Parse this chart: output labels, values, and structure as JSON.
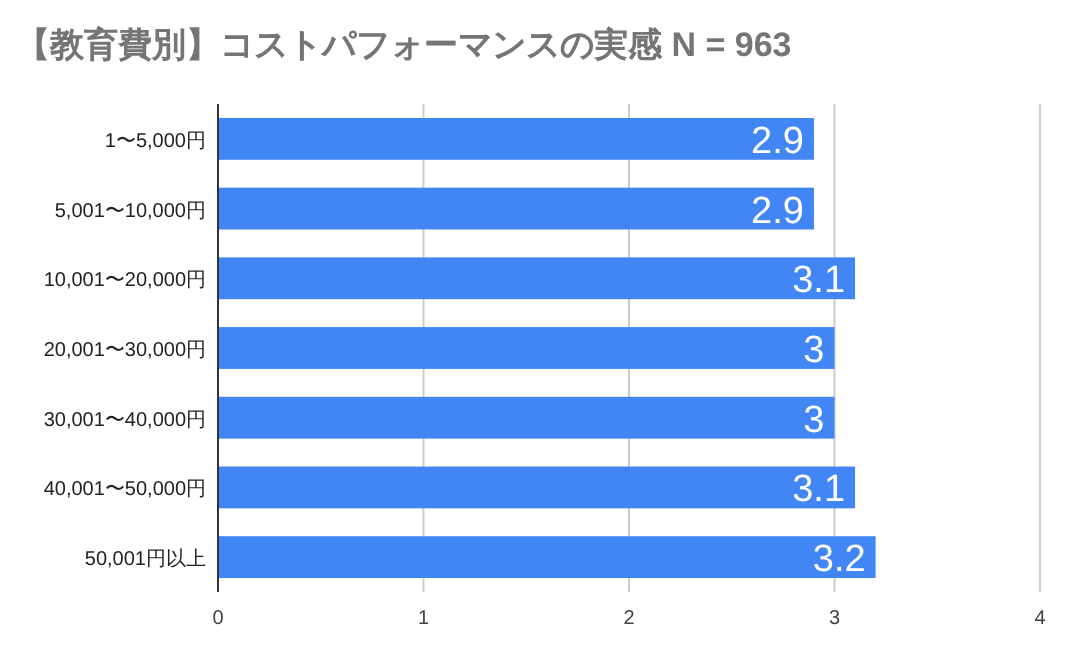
{
  "chart_data": {
    "type": "bar",
    "orientation": "horizontal",
    "title": "【教育費別】コストパフォーマンスの実感 N = 963",
    "categories": [
      "1〜5,000円",
      "5,001〜10,000円",
      "10,001〜20,000円",
      "20,001〜30,000円",
      "30,001〜40,000円",
      "40,001〜50,000円",
      "50,001円以上"
    ],
    "values": [
      2.9,
      2.9,
      3.1,
      3,
      3,
      3.1,
      3.2
    ],
    "color": "#4285f4",
    "xlim": [
      0,
      4
    ],
    "xticks": [
      0,
      1,
      2,
      3,
      4
    ],
    "grid": "x",
    "data_labels": true
  }
}
